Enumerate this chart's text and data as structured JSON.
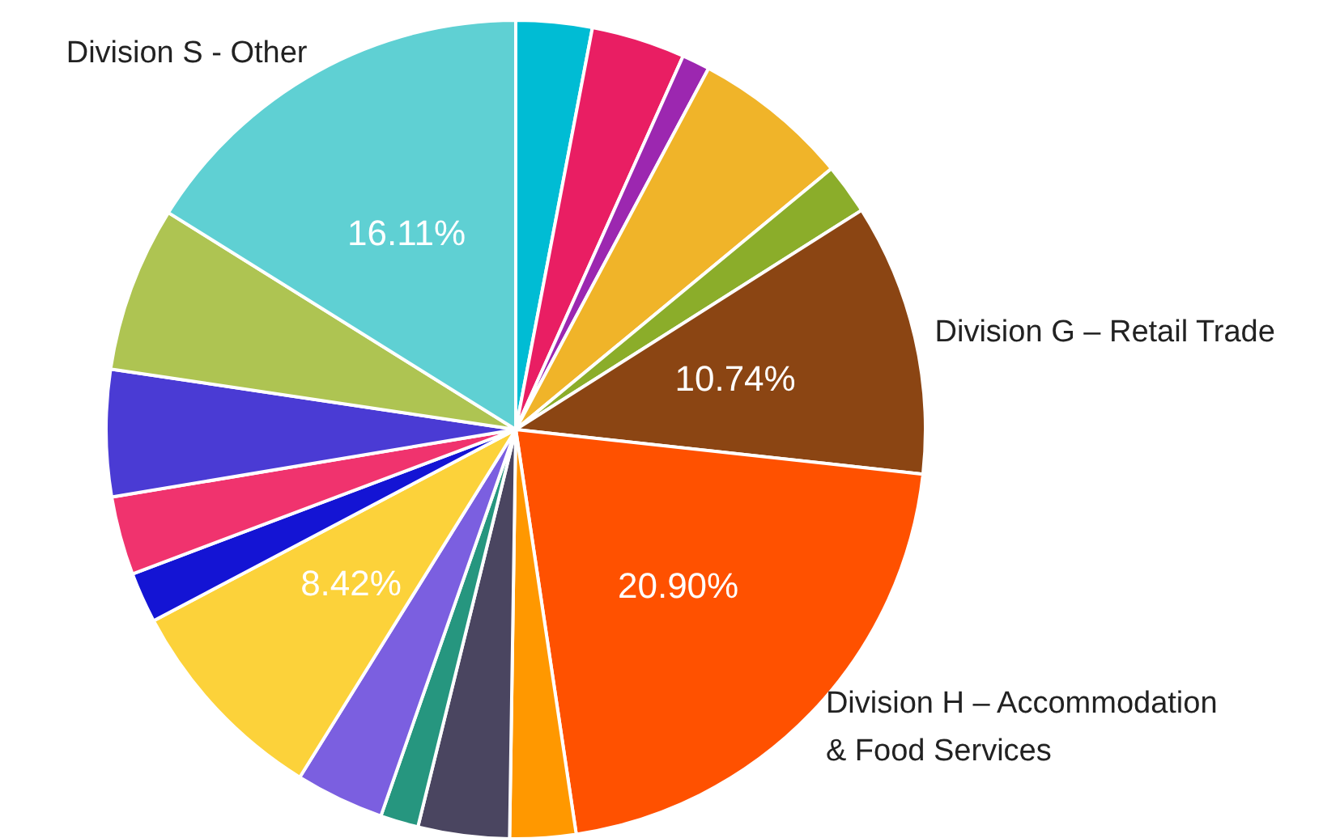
{
  "chart_data": {
    "type": "pie",
    "categories": [
      null,
      null,
      null,
      null,
      null,
      "Division G – Retail Trade",
      "Division H – Accommodation & Food Services",
      null,
      null,
      null,
      null,
      null,
      null,
      null,
      null,
      null,
      "Division S - Other"
    ],
    "values": [
      3.0,
      3.7,
      1.1,
      6.2,
      2.0,
      10.74,
      20.9,
      2.6,
      3.6,
      1.5,
      3.5,
      8.42,
      2.0,
      3.1,
      5.0,
      6.53,
      16.11
    ],
    "colors": [
      "#00bcd4",
      "#e91e63",
      "#9c27b0",
      "#f0b429",
      "#8bad2a",
      "#8b4513",
      "#ff5100",
      "#ff9800",
      "#4a4560",
      "#26967f",
      "#7b5fe0",
      "#fcd23a",
      "#1414d4",
      "#f0336e",
      "#4a3bd4",
      "#aec452",
      "#5fd0d3"
    ],
    "value_labels": [
      null,
      null,
      null,
      null,
      null,
      "10.74%",
      "20.90%",
      null,
      null,
      null,
      null,
      "8.42%",
      null,
      null,
      null,
      null,
      "16.11%"
    ]
  }
}
